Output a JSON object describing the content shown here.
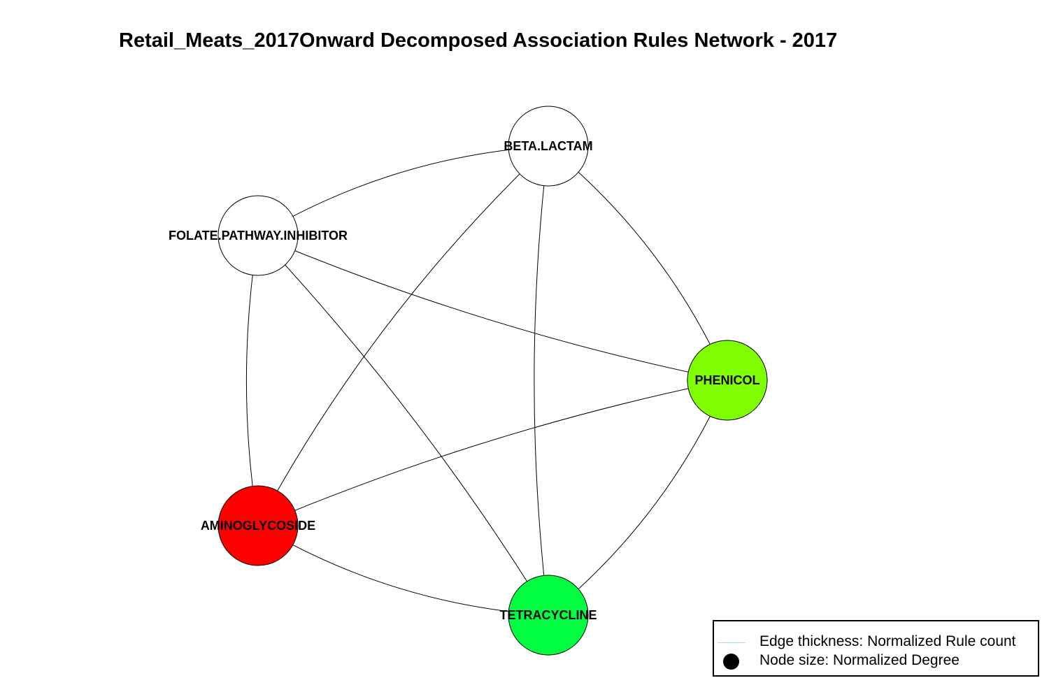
{
  "title": "Retail_Meats_2017Onward Decomposed Association Rules Network - 2017",
  "nodes": [
    {
      "id": "beta",
      "label": "BETA.LACTAM",
      "color": "#ffffff"
    },
    {
      "id": "folate",
      "label": "FOLATE.PATHWAY.INHIBITOR",
      "color": "#ffffff"
    },
    {
      "id": "phenicol",
      "label": "PHENICOL",
      "color": "#7fff00"
    },
    {
      "id": "amino",
      "label": "AMINOGLYCOSIDE",
      "color": "#ff0000"
    },
    {
      "id": "tetra",
      "label": "TETRACYCLINE",
      "color": "#00ff40"
    }
  ],
  "edges": [
    [
      "beta",
      "folate"
    ],
    [
      "beta",
      "amino"
    ],
    [
      "beta",
      "tetra"
    ],
    [
      "beta",
      "phenicol"
    ],
    [
      "folate",
      "phenicol"
    ],
    [
      "folate",
      "amino"
    ],
    [
      "folate",
      "tetra"
    ],
    [
      "phenicol",
      "amino"
    ],
    [
      "phenicol",
      "tetra"
    ],
    [
      "amino",
      "tetra"
    ]
  ],
  "legend": {
    "edge_text": "Edge thickness: Normalized Rule count",
    "edge_color": "#add8e6",
    "node_text": "Node size: Normalized Degree"
  }
}
